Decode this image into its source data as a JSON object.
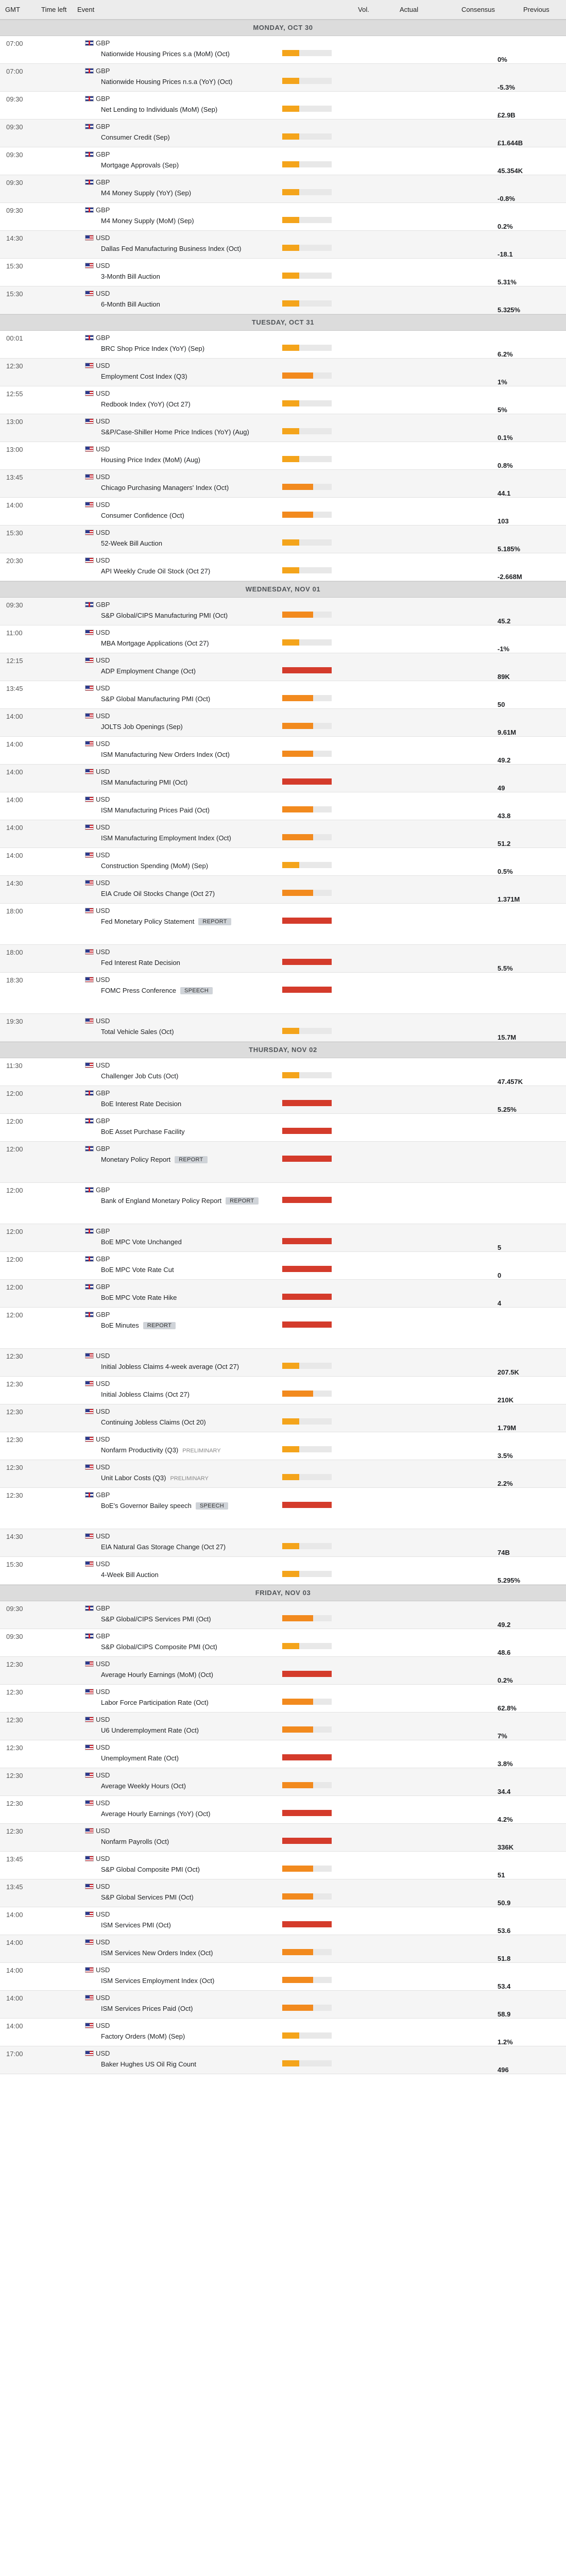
{
  "header": {
    "gmt": "GMT",
    "time_left": "Time left",
    "event": "Event",
    "vol": "Vol.",
    "actual": "Actual",
    "consensus": "Consensus",
    "previous": "Previous"
  },
  "colors": {
    "vol_low": "#f4a41b",
    "vol_mid": "#f28a1e",
    "vol_high": "#d43b2b"
  },
  "days": [
    {
      "label": "MONDAY, OCT 30",
      "events": [
        {
          "time": "07:00",
          "cur": "GBP",
          "name": "Nationwide Housing Prices s.a (MoM) (Oct)",
          "vol": "low",
          "previous": "0%"
        },
        {
          "time": "07:00",
          "cur": "GBP",
          "name": "Nationwide Housing Prices n.s.a (YoY) (Oct)",
          "vol": "low",
          "previous": "-5.3%"
        },
        {
          "time": "09:30",
          "cur": "GBP",
          "name": "Net Lending to Individuals (MoM) (Sep)",
          "vol": "low",
          "previous": "£2.9B"
        },
        {
          "time": "09:30",
          "cur": "GBP",
          "name": "Consumer Credit (Sep)",
          "vol": "low",
          "previous": "£1.644B"
        },
        {
          "time": "09:30",
          "cur": "GBP",
          "name": "Mortgage Approvals (Sep)",
          "vol": "low",
          "previous": "45.354K"
        },
        {
          "time": "09:30",
          "cur": "GBP",
          "name": "M4 Money Supply (YoY) (Sep)",
          "vol": "low",
          "previous": "-0.8%"
        },
        {
          "time": "09:30",
          "cur": "GBP",
          "name": "M4 Money Supply (MoM) (Sep)",
          "vol": "low",
          "previous": "0.2%"
        },
        {
          "time": "14:30",
          "cur": "USD",
          "name": "Dallas Fed Manufacturing Business Index (Oct)",
          "vol": "low",
          "previous": "-18.1"
        },
        {
          "time": "15:30",
          "cur": "USD",
          "name": "3-Month Bill Auction",
          "vol": "low",
          "previous": "5.31%"
        },
        {
          "time": "15:30",
          "cur": "USD",
          "name": "6-Month Bill Auction",
          "vol": "low",
          "previous": "5.325%"
        }
      ]
    },
    {
      "label": "TUESDAY, OCT 31",
      "events": [
        {
          "time": "00:01",
          "cur": "GBP",
          "name": "BRC Shop Price Index (YoY) (Sep)",
          "vol": "low",
          "previous": "6.2%"
        },
        {
          "time": "12:30",
          "cur": "USD",
          "name": "Employment Cost Index (Q3)",
          "vol": "mid",
          "previous": "1%"
        },
        {
          "time": "12:55",
          "cur": "USD",
          "name": "Redbook Index (YoY) (Oct 27)",
          "vol": "low",
          "previous": "5%"
        },
        {
          "time": "13:00",
          "cur": "USD",
          "name": "S&P/Case-Shiller Home Price Indices (YoY) (Aug)",
          "vol": "low",
          "previous": "0.1%"
        },
        {
          "time": "13:00",
          "cur": "USD",
          "name": "Housing Price Index (MoM) (Aug)",
          "vol": "low",
          "previous": "0.8%"
        },
        {
          "time": "13:45",
          "cur": "USD",
          "name": "Chicago Purchasing Managers' Index (Oct)",
          "vol": "mid",
          "previous": "44.1"
        },
        {
          "time": "14:00",
          "cur": "USD",
          "name": "Consumer Confidence (Oct)",
          "vol": "mid",
          "previous": "103"
        },
        {
          "time": "15:30",
          "cur": "USD",
          "name": "52-Week Bill Auction",
          "vol": "low",
          "previous": "5.185%"
        },
        {
          "time": "20:30",
          "cur": "USD",
          "name": "API Weekly Crude Oil Stock (Oct 27)",
          "vol": "low",
          "previous": "-2.668M"
        }
      ]
    },
    {
      "label": "WEDNESDAY, NOV 01",
      "events": [
        {
          "time": "09:30",
          "cur": "GBP",
          "name": "S&P Global/CIPS Manufacturing PMI (Oct)",
          "vol": "mid",
          "previous": "45.2"
        },
        {
          "time": "11:00",
          "cur": "USD",
          "name": "MBA Mortgage Applications (Oct 27)",
          "vol": "low",
          "previous": "-1%"
        },
        {
          "time": "12:15",
          "cur": "USD",
          "name": "ADP Employment Change (Oct)",
          "vol": "high",
          "previous": "89K"
        },
        {
          "time": "13:45",
          "cur": "USD",
          "name": "S&P Global Manufacturing PMI (Oct)",
          "vol": "mid",
          "previous": "50"
        },
        {
          "time": "14:00",
          "cur": "USD",
          "name": "JOLTS Job Openings (Sep)",
          "vol": "mid",
          "previous": "9.61M"
        },
        {
          "time": "14:00",
          "cur": "USD",
          "name": "ISM Manufacturing New Orders Index (Oct)",
          "vol": "mid",
          "previous": "49.2"
        },
        {
          "time": "14:00",
          "cur": "USD",
          "name": "ISM Manufacturing PMI (Oct)",
          "vol": "high",
          "previous": "49"
        },
        {
          "time": "14:00",
          "cur": "USD",
          "name": "ISM Manufacturing Prices Paid (Oct)",
          "vol": "mid",
          "previous": "43.8"
        },
        {
          "time": "14:00",
          "cur": "USD",
          "name": "ISM Manufacturing Employment Index (Oct)",
          "vol": "mid",
          "previous": "51.2"
        },
        {
          "time": "14:00",
          "cur": "USD",
          "name": "Construction Spending (MoM) (Sep)",
          "vol": "low",
          "previous": "0.5%"
        },
        {
          "time": "14:30",
          "cur": "USD",
          "name": "EIA Crude Oil Stocks Change (Oct 27)",
          "vol": "mid",
          "previous": "1.371M"
        },
        {
          "time": "18:00",
          "cur": "USD",
          "name": "Fed Monetary Policy Statement",
          "badge": "REPORT",
          "vol": "high",
          "previous": ""
        },
        {
          "time": "18:00",
          "cur": "USD",
          "name": "Fed Interest Rate Decision",
          "vol": "high",
          "previous": "5.5%"
        },
        {
          "time": "18:30",
          "cur": "USD",
          "name": "FOMC Press Conference",
          "badge": "SPEECH",
          "vol": "high",
          "previous": ""
        },
        {
          "time": "19:30",
          "cur": "USD",
          "name": "Total Vehicle Sales (Oct)",
          "vol": "low",
          "previous": "15.7M"
        }
      ]
    },
    {
      "label": "THURSDAY, NOV 02",
      "events": [
        {
          "time": "11:30",
          "cur": "USD",
          "name": "Challenger Job Cuts (Oct)",
          "vol": "low",
          "previous": "47.457K"
        },
        {
          "time": "12:00",
          "cur": "GBP",
          "name": "BoE Interest Rate Decision",
          "vol": "high",
          "previous": "5.25%"
        },
        {
          "time": "12:00",
          "cur": "GBP",
          "name": "BoE Asset Purchase Facility",
          "vol": "high",
          "previous": ""
        },
        {
          "time": "12:00",
          "cur": "GBP",
          "name": "Monetary Policy Report",
          "badge": "REPORT",
          "vol": "high",
          "previous": ""
        },
        {
          "time": "12:00",
          "cur": "GBP",
          "name": "Bank of England Monetary Policy Report",
          "badge": "REPORT",
          "vol": "high",
          "previous": ""
        },
        {
          "time": "12:00",
          "cur": "GBP",
          "name": "BoE MPC Vote Unchanged",
          "vol": "high",
          "previous": "5"
        },
        {
          "time": "12:00",
          "cur": "GBP",
          "name": "BoE MPC Vote Rate Cut",
          "vol": "high",
          "previous": "0"
        },
        {
          "time": "12:00",
          "cur": "GBP",
          "name": "BoE MPC Vote Rate Hike",
          "vol": "high",
          "previous": "4"
        },
        {
          "time": "12:00",
          "cur": "GBP",
          "name": "BoE Minutes",
          "badge": "REPORT",
          "vol": "high",
          "previous": ""
        },
        {
          "time": "12:30",
          "cur": "USD",
          "name": "Initial Jobless Claims 4-week average (Oct 27)",
          "vol": "low",
          "previous": "207.5K"
        },
        {
          "time": "12:30",
          "cur": "USD",
          "name": "Initial Jobless Claims (Oct 27)",
          "vol": "mid",
          "previous": "210K"
        },
        {
          "time": "12:30",
          "cur": "USD",
          "name": "Continuing Jobless Claims (Oct 20)",
          "vol": "low",
          "previous": "1.79M"
        },
        {
          "time": "12:30",
          "cur": "USD",
          "name": "Nonfarm Productivity (Q3)",
          "badge_plain": "PRELIMINARY",
          "vol": "low",
          "previous": "3.5%"
        },
        {
          "time": "12:30",
          "cur": "USD",
          "name": "Unit Labor Costs (Q3)",
          "badge_plain": "PRELIMINARY",
          "vol": "low",
          "previous": "2.2%"
        },
        {
          "time": "12:30",
          "cur": "GBP",
          "name": "BoE's Governor Bailey speech",
          "badge": "SPEECH",
          "vol": "high",
          "previous": ""
        },
        {
          "time": "14:30",
          "cur": "USD",
          "name": "EIA Natural Gas Storage Change (Oct 27)",
          "vol": "low",
          "previous": "74B"
        },
        {
          "time": "15:30",
          "cur": "USD",
          "name": "4-Week Bill Auction",
          "vol": "low",
          "previous": "5.295%"
        }
      ]
    },
    {
      "label": "FRIDAY, NOV 03",
      "events": [
        {
          "time": "09:30",
          "cur": "GBP",
          "name": "S&P Global/CIPS Services PMI (Oct)",
          "vol": "mid",
          "previous": "49.2"
        },
        {
          "time": "09:30",
          "cur": "GBP",
          "name": "S&P Global/CIPS Composite PMI (Oct)",
          "vol": "low",
          "previous": "48.6"
        },
        {
          "time": "12:30",
          "cur": "USD",
          "name": "Average Hourly Earnings (MoM) (Oct)",
          "vol": "high",
          "previous": "0.2%"
        },
        {
          "time": "12:30",
          "cur": "USD",
          "name": "Labor Force Participation Rate (Oct)",
          "vol": "mid",
          "previous": "62.8%"
        },
        {
          "time": "12:30",
          "cur": "USD",
          "name": "U6 Underemployment Rate (Oct)",
          "vol": "mid",
          "previous": "7%"
        },
        {
          "time": "12:30",
          "cur": "USD",
          "name": "Unemployment Rate (Oct)",
          "vol": "high",
          "previous": "3.8%"
        },
        {
          "time": "12:30",
          "cur": "USD",
          "name": "Average Weekly Hours (Oct)",
          "vol": "mid",
          "previous": "34.4"
        },
        {
          "time": "12:30",
          "cur": "USD",
          "name": "Average Hourly Earnings (YoY) (Oct)",
          "vol": "high",
          "previous": "4.2%"
        },
        {
          "time": "12:30",
          "cur": "USD",
          "name": "Nonfarm Payrolls (Oct)",
          "vol": "high",
          "previous": "336K"
        },
        {
          "time": "13:45",
          "cur": "USD",
          "name": "S&P Global Composite PMI (Oct)",
          "vol": "mid",
          "previous": "51"
        },
        {
          "time": "13:45",
          "cur": "USD",
          "name": "S&P Global Services PMI (Oct)",
          "vol": "mid",
          "previous": "50.9"
        },
        {
          "time": "14:00",
          "cur": "USD",
          "name": "ISM Services PMI (Oct)",
          "vol": "high",
          "previous": "53.6"
        },
        {
          "time": "14:00",
          "cur": "USD",
          "name": "ISM Services New Orders Index (Oct)",
          "vol": "mid",
          "previous": "51.8"
        },
        {
          "time": "14:00",
          "cur": "USD",
          "name": "ISM Services Employment Index (Oct)",
          "vol": "mid",
          "previous": "53.4"
        },
        {
          "time": "14:00",
          "cur": "USD",
          "name": "ISM Services Prices Paid (Oct)",
          "vol": "mid",
          "previous": "58.9"
        },
        {
          "time": "14:00",
          "cur": "USD",
          "name": "Factory Orders (MoM) (Sep)",
          "vol": "low",
          "previous": "1.2%"
        },
        {
          "time": "17:00",
          "cur": "USD",
          "name": "Baker Hughes US Oil Rig Count",
          "vol": "low",
          "previous": "496"
        }
      ]
    }
  ]
}
